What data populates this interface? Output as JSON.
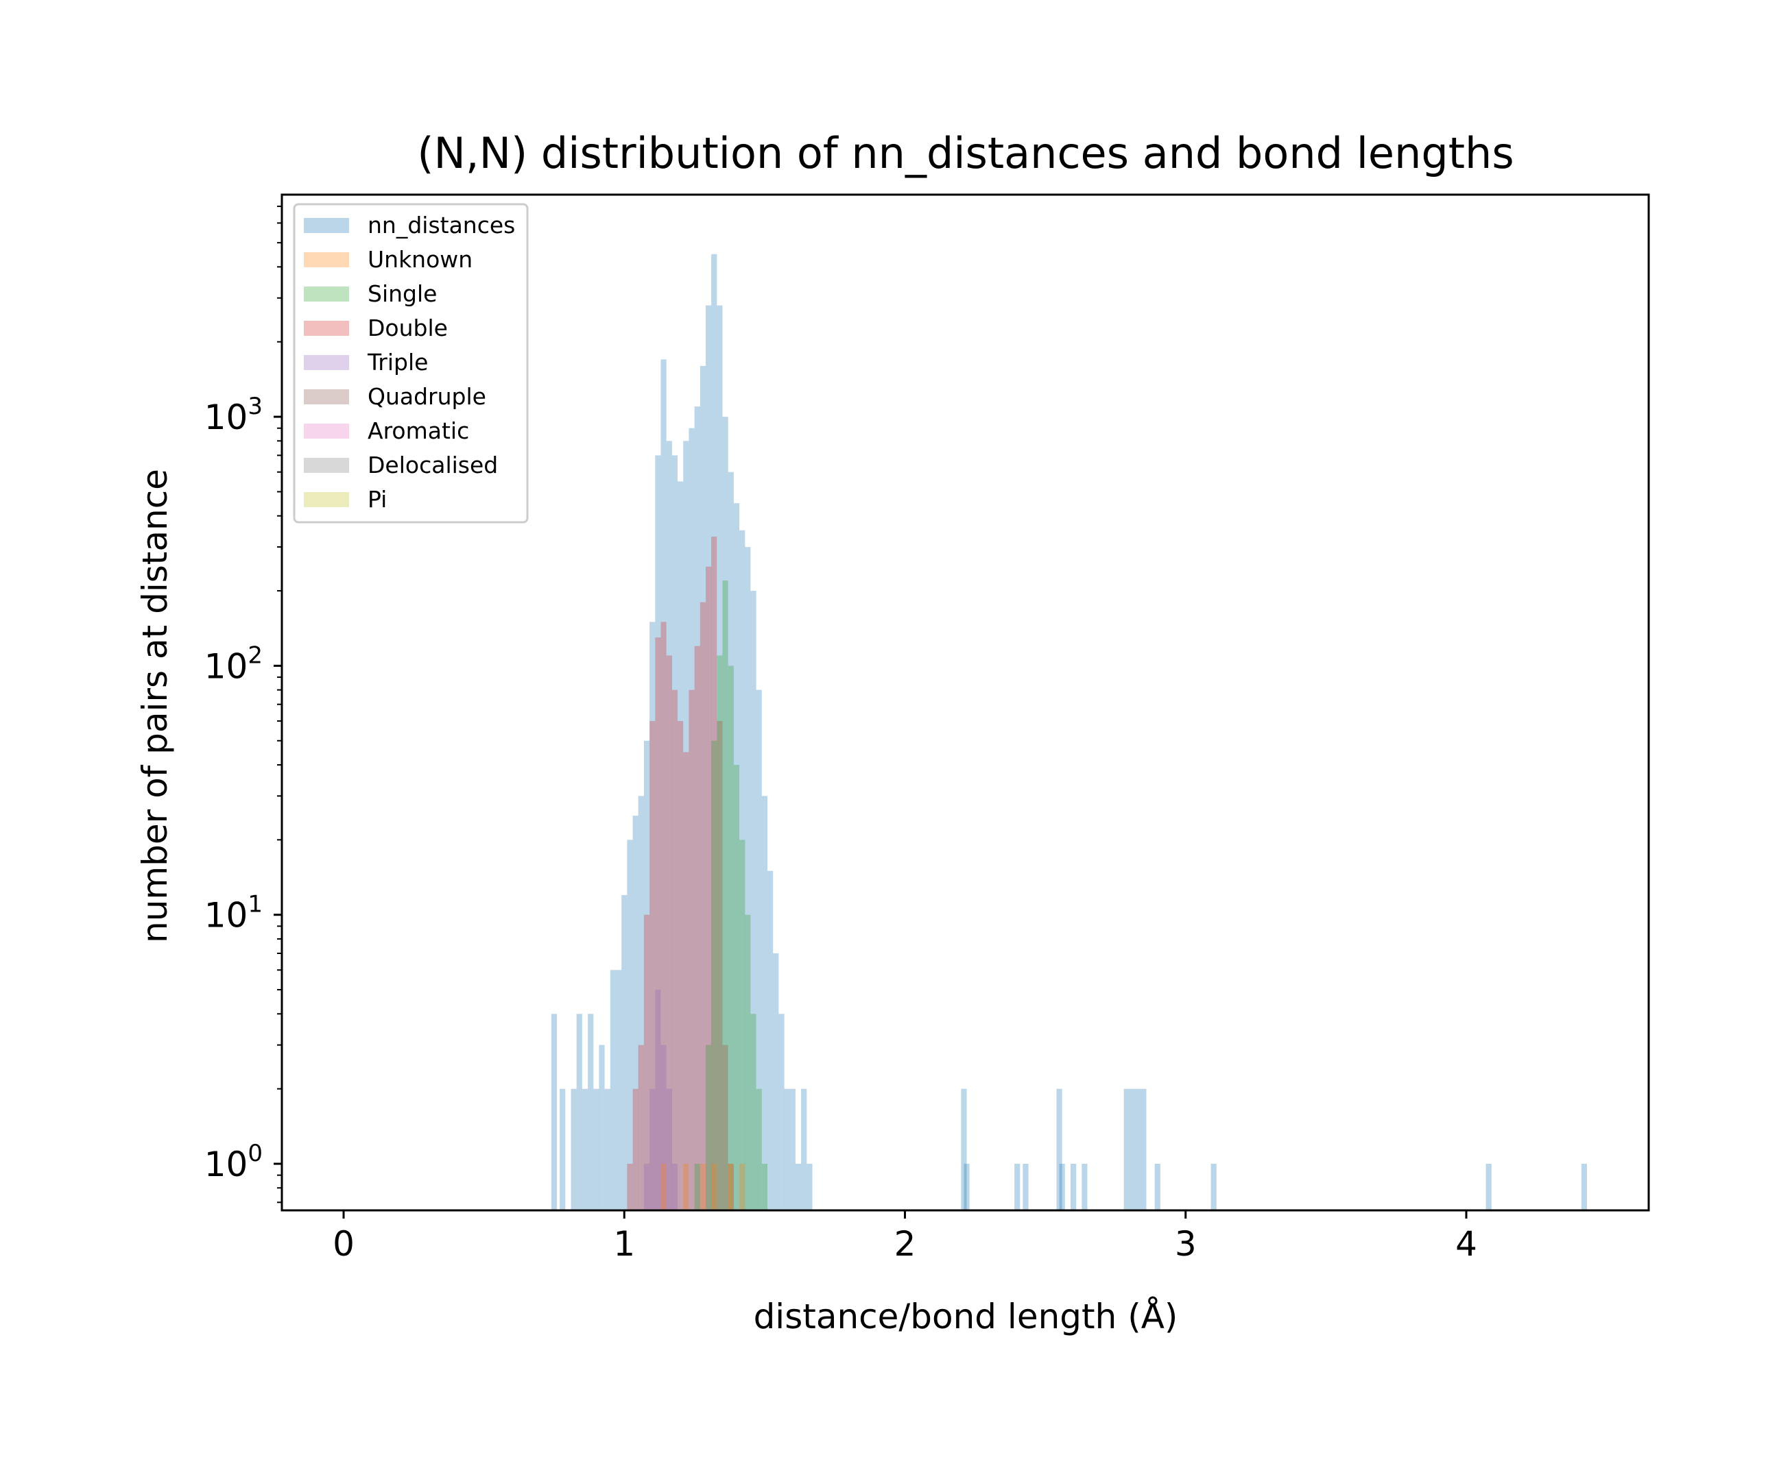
{
  "chart_data": {
    "type": "histogram",
    "title": "(N,N) distribution of nn_distances and bond lengths",
    "xlabel": "distance/bond length (Å)",
    "ylabel": "number of pairs at distance",
    "xlim": [
      -0.22,
      4.65
    ],
    "ylim": [
      0.65,
      7800
    ],
    "yscale": "log",
    "x_ticks": [
      "0",
      "1",
      "2",
      "3",
      "4"
    ],
    "y_ticks": [
      {
        "base": "10",
        "exp": "0"
      },
      {
        "base": "10",
        "exp": "1"
      },
      {
        "base": "10",
        "exp": "2"
      },
      {
        "base": "10",
        "exp": "3"
      }
    ],
    "grid": false,
    "legend_position": "upper-left",
    "alpha": 0.3,
    "legend": [
      {
        "name": "nn_distances",
        "color": "#1f77b4"
      },
      {
        "name": "Unknown",
        "color": "#ff7f0e"
      },
      {
        "name": "Single",
        "color": "#2ca02c"
      },
      {
        "name": "Double",
        "color": "#d62728"
      },
      {
        "name": "Triple",
        "color": "#9467bd"
      },
      {
        "name": "Quadruple",
        "color": "#8c564b"
      },
      {
        "name": "Aromatic",
        "color": "#e377c2"
      },
      {
        "name": "Delocalised",
        "color": "#7f7f7f"
      },
      {
        "name": "Pi",
        "color": "#bcbd22"
      }
    ],
    "series": [
      {
        "name": "nn_distances",
        "color": "#1f77b4",
        "points": [
          [
            0.75,
            4
          ],
          [
            0.78,
            2
          ],
          [
            0.82,
            2
          ],
          [
            0.84,
            4
          ],
          [
            0.86,
            2
          ],
          [
            0.88,
            4
          ],
          [
            0.9,
            2
          ],
          [
            0.92,
            3
          ],
          [
            0.94,
            2
          ],
          [
            0.96,
            6
          ],
          [
            0.98,
            6
          ],
          [
            1.0,
            12
          ],
          [
            1.02,
            20
          ],
          [
            1.04,
            25
          ],
          [
            1.06,
            30
          ],
          [
            1.08,
            50
          ],
          [
            1.1,
            150
          ],
          [
            1.12,
            700
          ],
          [
            1.14,
            1700
          ],
          [
            1.16,
            800
          ],
          [
            1.18,
            700
          ],
          [
            1.2,
            550
          ],
          [
            1.22,
            800
          ],
          [
            1.24,
            900
          ],
          [
            1.26,
            1100
          ],
          [
            1.28,
            1600
          ],
          [
            1.3,
            2800
          ],
          [
            1.32,
            4500
          ],
          [
            1.34,
            2800
          ],
          [
            1.36,
            1000
          ],
          [
            1.38,
            600
          ],
          [
            1.4,
            450
          ],
          [
            1.42,
            350
          ],
          [
            1.44,
            300
          ],
          [
            1.46,
            200
          ],
          [
            1.48,
            80
          ],
          [
            1.5,
            30
          ],
          [
            1.52,
            15
          ],
          [
            1.54,
            7
          ],
          [
            1.56,
            4
          ],
          [
            1.58,
            2
          ],
          [
            1.6,
            2
          ],
          [
            1.62,
            1
          ],
          [
            1.64,
            2
          ],
          [
            1.66,
            1
          ],
          [
            2.21,
            2
          ],
          [
            2.22,
            1
          ],
          [
            2.4,
            1
          ],
          [
            2.43,
            1
          ],
          [
            2.55,
            2
          ],
          [
            2.56,
            1
          ],
          [
            2.6,
            1
          ],
          [
            2.64,
            1
          ],
          [
            2.79,
            2
          ],
          [
            2.81,
            2
          ],
          [
            2.83,
            2
          ],
          [
            2.85,
            2
          ],
          [
            2.9,
            1
          ],
          [
            3.1,
            1
          ],
          [
            4.08,
            1
          ],
          [
            4.42,
            1
          ]
        ]
      },
      {
        "name": "Double",
        "color": "#d62728",
        "points": [
          [
            1.02,
            1
          ],
          [
            1.04,
            2
          ],
          [
            1.06,
            3
          ],
          [
            1.08,
            10
          ],
          [
            1.1,
            60
          ],
          [
            1.12,
            130
          ],
          [
            1.14,
            150
          ],
          [
            1.16,
            110
          ],
          [
            1.18,
            80
          ],
          [
            1.2,
            60
          ],
          [
            1.22,
            45
          ],
          [
            1.24,
            80
          ],
          [
            1.26,
            120
          ],
          [
            1.28,
            180
          ],
          [
            1.3,
            250
          ],
          [
            1.32,
            330
          ],
          [
            1.34,
            60
          ],
          [
            1.36,
            3
          ],
          [
            1.38,
            1
          ]
        ]
      },
      {
        "name": "Single",
        "color": "#2ca02c",
        "points": [
          [
            1.26,
            1
          ],
          [
            1.3,
            3
          ],
          [
            1.32,
            50
          ],
          [
            1.34,
            110
          ],
          [
            1.36,
            220
          ],
          [
            1.38,
            100
          ],
          [
            1.4,
            40
          ],
          [
            1.42,
            20
          ],
          [
            1.44,
            10
          ],
          [
            1.46,
            4
          ],
          [
            1.48,
            2
          ],
          [
            1.5,
            1
          ]
        ]
      },
      {
        "name": "Triple",
        "color": "#9467bd",
        "points": [
          [
            1.08,
            1
          ],
          [
            1.1,
            2
          ],
          [
            1.12,
            5
          ],
          [
            1.14,
            3
          ],
          [
            1.16,
            2
          ],
          [
            1.18,
            1
          ]
        ]
      },
      {
        "name": "Unknown",
        "color": "#ff7f0e",
        "points": [
          [
            1.14,
            1
          ],
          [
            1.22,
            1
          ],
          [
            1.28,
            1
          ],
          [
            1.32,
            1
          ],
          [
            1.38,
            1
          ],
          [
            1.42,
            1
          ]
        ]
      }
    ]
  }
}
